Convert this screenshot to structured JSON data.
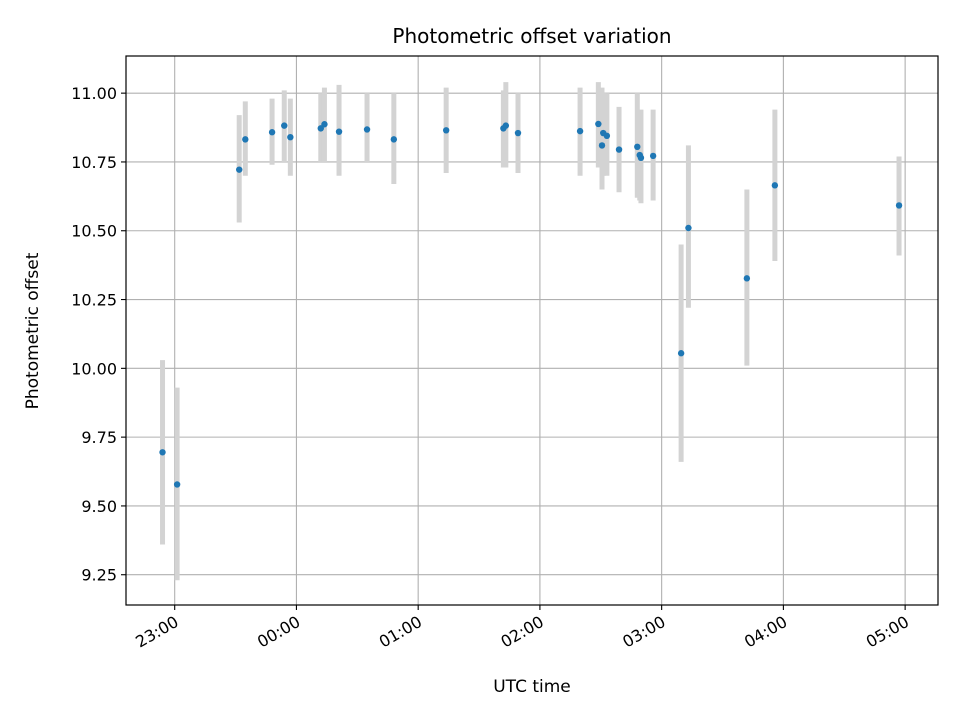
{
  "chart_data": {
    "type": "scatter",
    "title": "Photometric offset variation",
    "xlabel": "UTC time",
    "ylabel": "Photometric offset",
    "grid": true,
    "x_unit": "hours relative to 00:00 UTC",
    "xlim": [
      -1.4,
      5.27
    ],
    "ylim": [
      9.14,
      11.135
    ],
    "x_ticks": [
      {
        "value": -1,
        "label": "23:00"
      },
      {
        "value": 0,
        "label": "00:00"
      },
      {
        "value": 1,
        "label": "01:00"
      },
      {
        "value": 2,
        "label": "02:00"
      },
      {
        "value": 3,
        "label": "03:00"
      },
      {
        "value": 4,
        "label": "04:00"
      },
      {
        "value": 5,
        "label": "05:00"
      }
    ],
    "y_ticks": [
      {
        "value": 9.25,
        "label": "9.25"
      },
      {
        "value": 9.5,
        "label": "9.50"
      },
      {
        "value": 9.75,
        "label": "9.75"
      },
      {
        "value": 10.0,
        "label": "10.00"
      },
      {
        "value": 10.25,
        "label": "10.25"
      },
      {
        "value": 10.5,
        "label": "10.50"
      },
      {
        "value": 10.75,
        "label": "10.75"
      },
      {
        "value": 11.0,
        "label": "11.00"
      }
    ],
    "marker_color": "#1f77b4",
    "errorbar_color": "#d3d3d3",
    "points": [
      {
        "x": -1.1,
        "y": 9.695,
        "lo": 9.36,
        "hi": 10.03
      },
      {
        "x": -0.98,
        "y": 9.578,
        "lo": 9.23,
        "hi": 9.93
      },
      {
        "x": -0.47,
        "y": 10.722,
        "lo": 10.53,
        "hi": 10.92
      },
      {
        "x": -0.42,
        "y": 10.832,
        "lo": 10.7,
        "hi": 10.97
      },
      {
        "x": -0.2,
        "y": 10.858,
        "lo": 10.74,
        "hi": 10.98
      },
      {
        "x": -0.1,
        "y": 10.882,
        "lo": 10.75,
        "hi": 11.01
      },
      {
        "x": -0.05,
        "y": 10.84,
        "lo": 10.7,
        "hi": 10.98
      },
      {
        "x": 0.2,
        "y": 10.872,
        "lo": 10.75,
        "hi": 11.0
      },
      {
        "x": 0.23,
        "y": 10.887,
        "lo": 10.75,
        "hi": 11.02
      },
      {
        "x": 0.35,
        "y": 10.86,
        "lo": 10.7,
        "hi": 11.03
      },
      {
        "x": 0.58,
        "y": 10.868,
        "lo": 10.75,
        "hi": 11.0
      },
      {
        "x": 0.8,
        "y": 10.832,
        "lo": 10.67,
        "hi": 11.0
      },
      {
        "x": 1.23,
        "y": 10.865,
        "lo": 10.71,
        "hi": 11.02
      },
      {
        "x": 1.7,
        "y": 10.872,
        "lo": 10.73,
        "hi": 11.01
      },
      {
        "x": 1.72,
        "y": 10.882,
        "lo": 10.73,
        "hi": 11.04
      },
      {
        "x": 1.82,
        "y": 10.855,
        "lo": 10.71,
        "hi": 11.0
      },
      {
        "x": 2.33,
        "y": 10.862,
        "lo": 10.7,
        "hi": 11.02
      },
      {
        "x": 2.48,
        "y": 10.888,
        "lo": 10.73,
        "hi": 11.04
      },
      {
        "x": 2.51,
        "y": 10.81,
        "lo": 10.65,
        "hi": 11.02
      },
      {
        "x": 2.52,
        "y": 10.855,
        "lo": 10.7,
        "hi": 11.0
      },
      {
        "x": 2.55,
        "y": 10.845,
        "lo": 10.7,
        "hi": 11.0
      },
      {
        "x": 2.65,
        "y": 10.795,
        "lo": 10.64,
        "hi": 10.95
      },
      {
        "x": 2.8,
        "y": 10.805,
        "lo": 10.62,
        "hi": 11.0
      },
      {
        "x": 2.82,
        "y": 10.775,
        "lo": 10.61,
        "hi": 10.93
      },
      {
        "x": 2.83,
        "y": 10.765,
        "lo": 10.6,
        "hi": 10.94
      },
      {
        "x": 2.93,
        "y": 10.772,
        "lo": 10.61,
        "hi": 10.94
      },
      {
        "x": 3.16,
        "y": 10.055,
        "lo": 9.66,
        "hi": 10.45
      },
      {
        "x": 3.22,
        "y": 10.51,
        "lo": 10.22,
        "hi": 10.81
      },
      {
        "x": 3.7,
        "y": 10.327,
        "lo": 10.01,
        "hi": 10.65
      },
      {
        "x": 3.93,
        "y": 10.665,
        "lo": 10.39,
        "hi": 10.94
      },
      {
        "x": 4.95,
        "y": 10.592,
        "lo": 10.41,
        "hi": 10.77
      }
    ]
  }
}
